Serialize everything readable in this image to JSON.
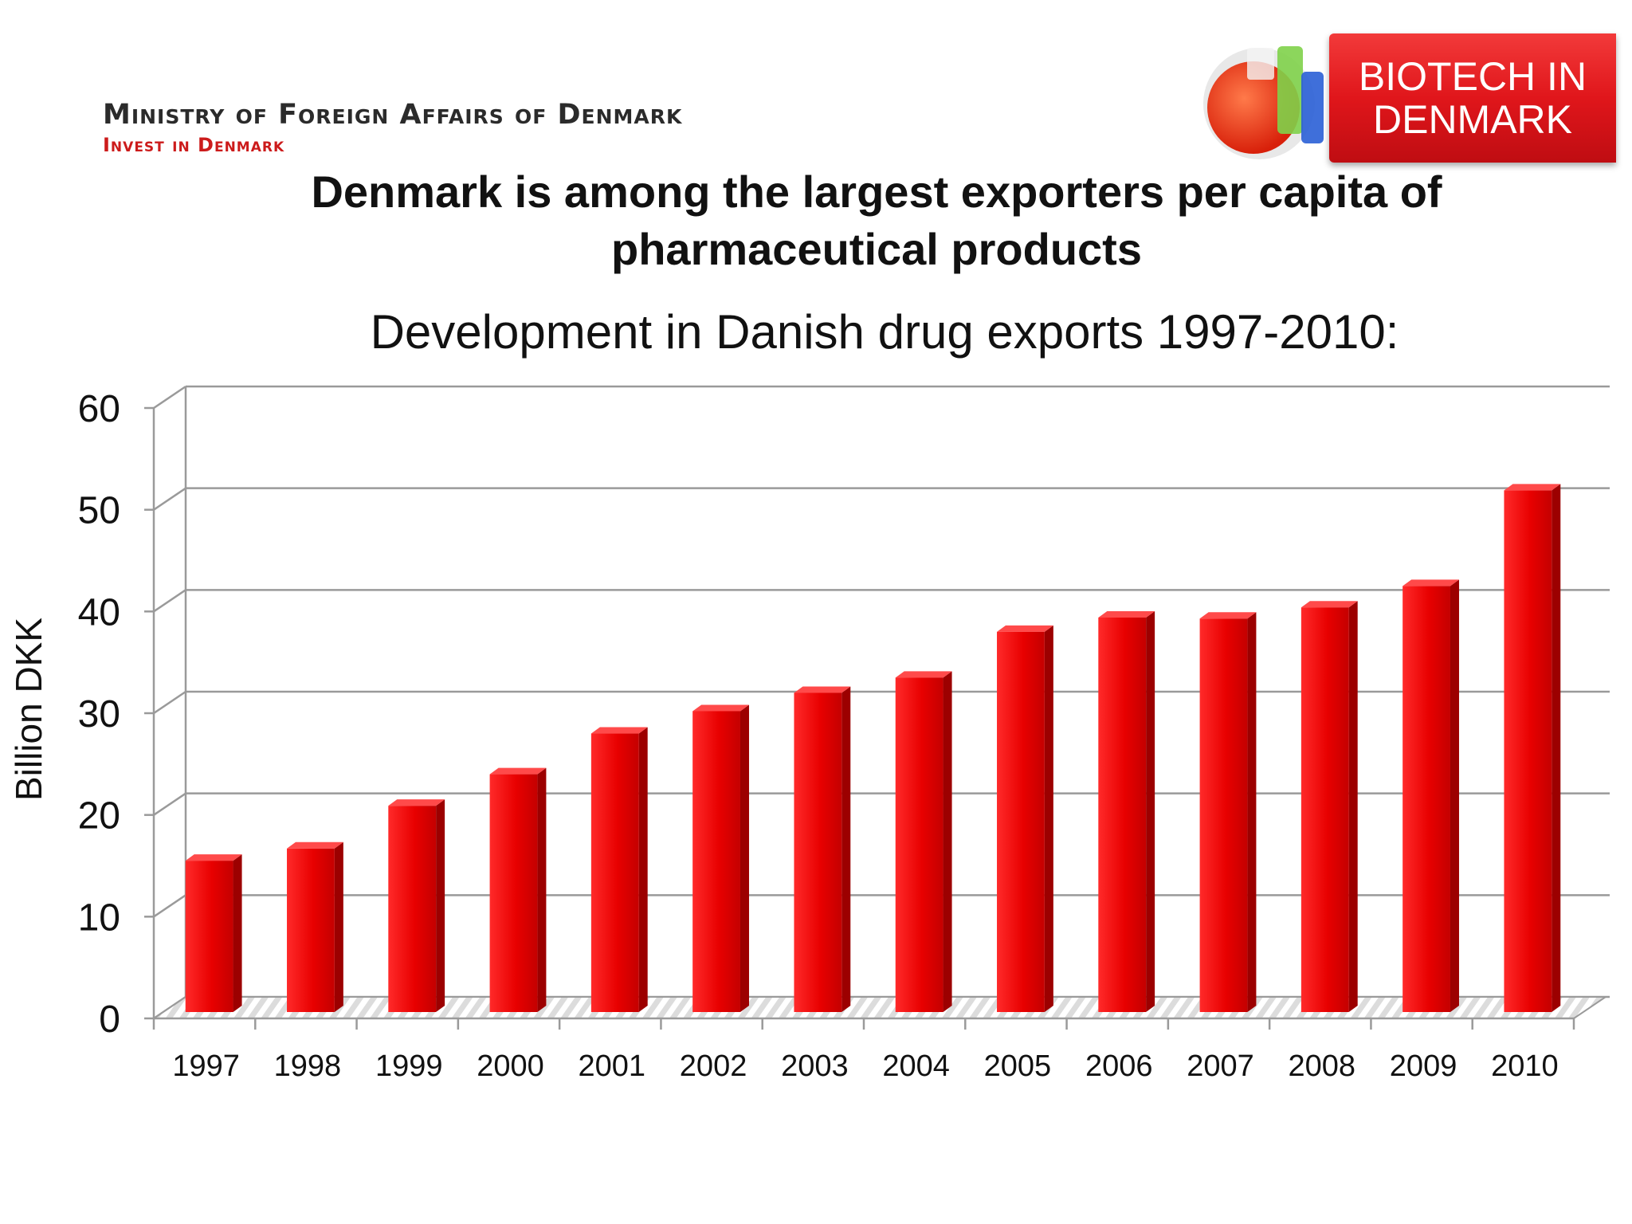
{
  "header": {
    "ministry": "Ministry of Foreign Affairs of Denmark",
    "invest": "Invest in Denmark",
    "badge_line1": "BIOTECH IN",
    "badge_line2": "DENMARK",
    "badge_icon": "lab-flasks-icon"
  },
  "slide": {
    "title": "Denmark is among the largest exporters per capita of pharmaceutical products"
  },
  "chart_data": {
    "type": "bar",
    "title": "Development in Danish drug exports 1997-2010:",
    "ylabel": "Billion DKK",
    "xlabel": "",
    "ylim": [
      0,
      60
    ],
    "yticks": [
      0,
      10,
      20,
      30,
      40,
      50,
      60
    ],
    "grid": true,
    "legend": "none",
    "categories": [
      "1997",
      "1998",
      "1999",
      "2000",
      "2001",
      "2002",
      "2003",
      "2004",
      "2005",
      "2006",
      "2007",
      "2008",
      "2009",
      "2010"
    ],
    "values": [
      15.5,
      16.7,
      20.9,
      24.0,
      28.0,
      30.2,
      32.0,
      33.5,
      38.0,
      39.4,
      39.3,
      40.4,
      42.5,
      51.9
    ],
    "bar_color": "#e00000"
  }
}
